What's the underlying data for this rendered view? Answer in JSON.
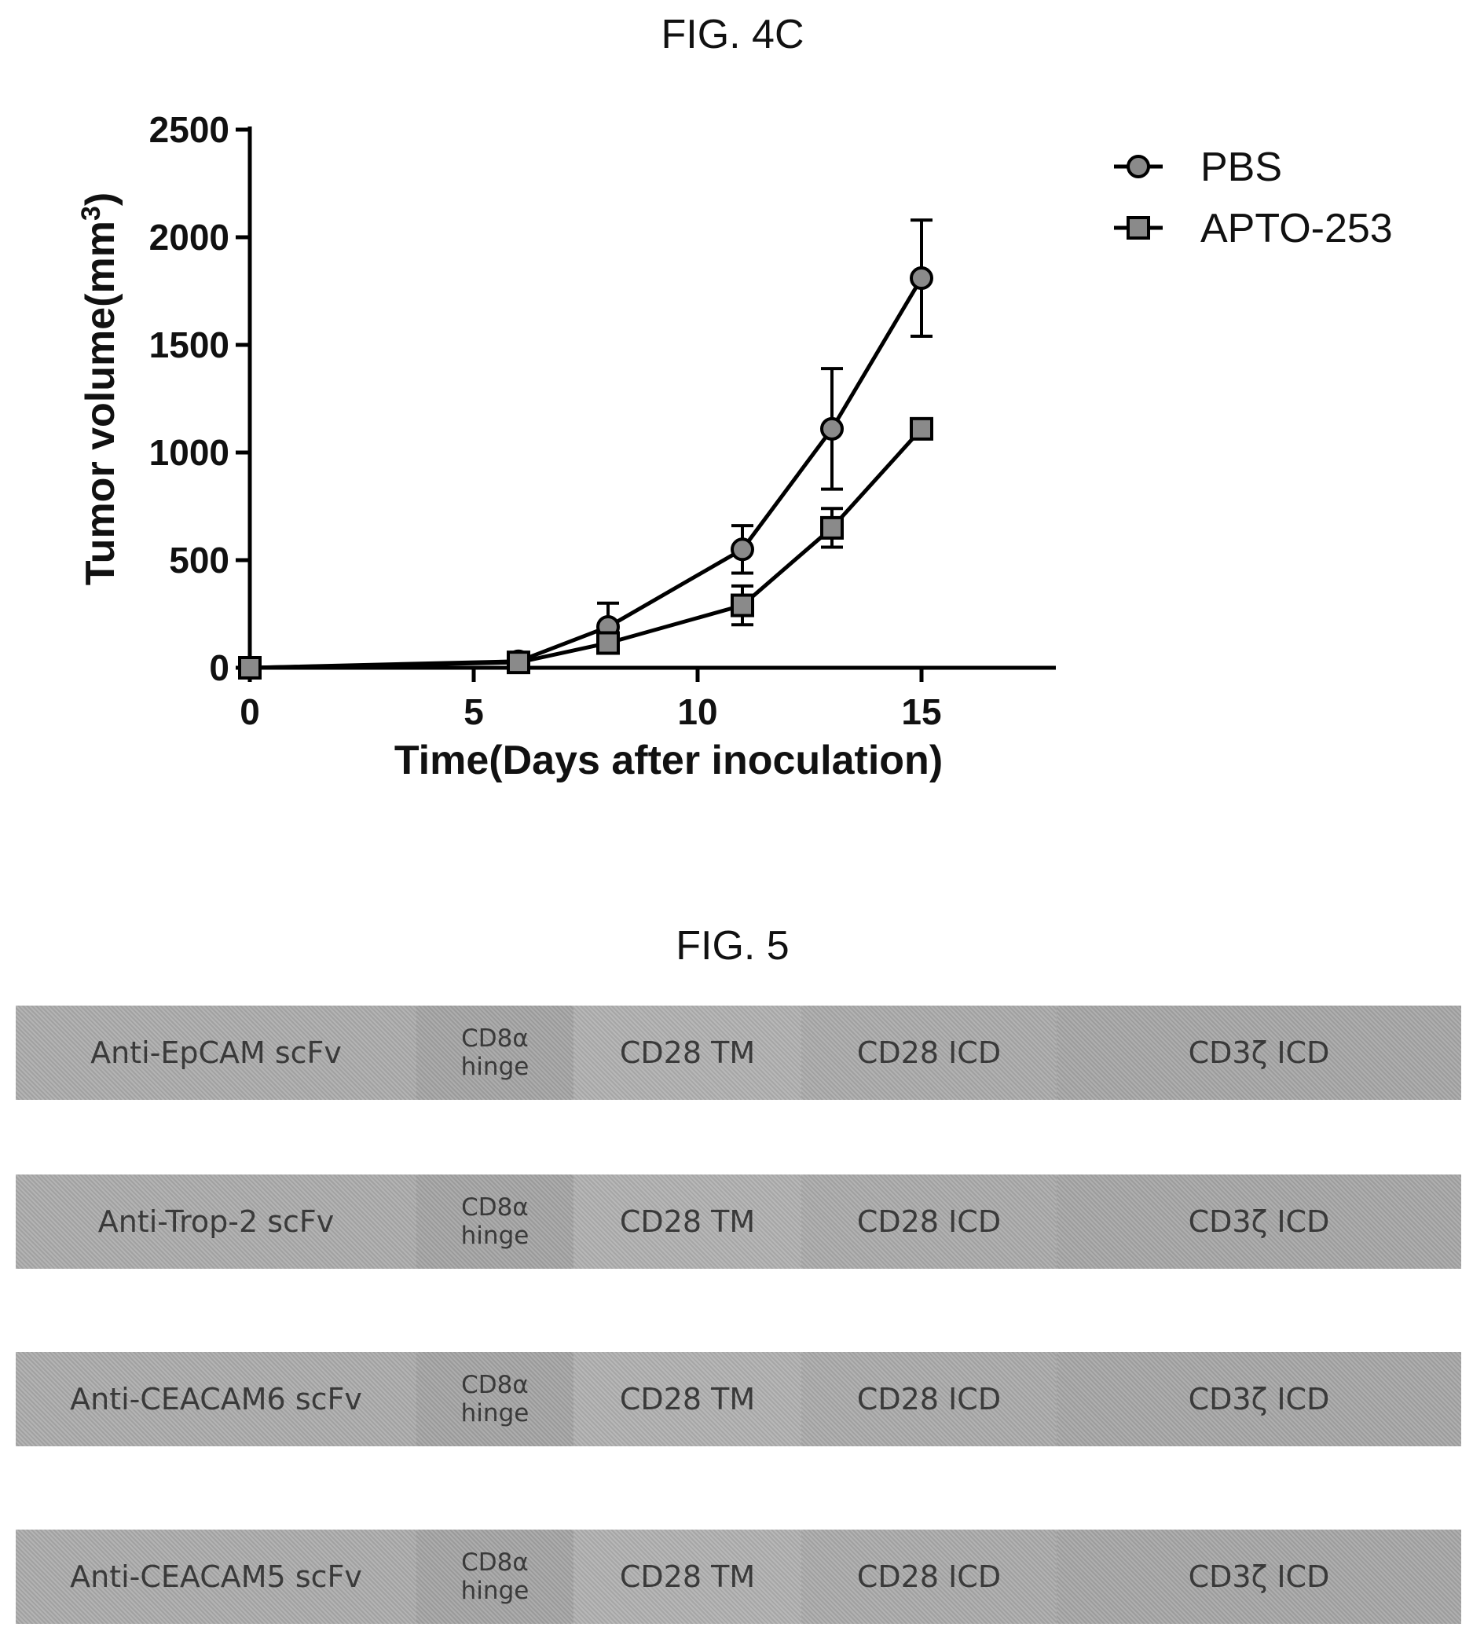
{
  "fig4c": {
    "title": "FIG. 4C",
    "chart_data": {
      "type": "line",
      "xlabel": "Time(Days after inoculation)",
      "ylabel": "Tumor volume(mm3)",
      "ylabel_base": "Tumor volume(mm",
      "ylabel_sup": "3",
      "ylabel_close": ")",
      "xlim": [
        0,
        18
      ],
      "ylim": [
        0,
        2500
      ],
      "xticks": [
        0,
        5,
        10,
        15
      ],
      "xtick_labels": [
        "0",
        "5",
        "10",
        "15"
      ],
      "yticks": [
        0,
        500,
        1000,
        1500,
        2000,
        2500
      ],
      "ytick_labels": [
        "0",
        "500",
        "1000",
        "1500",
        "2000",
        "2500"
      ],
      "grid": false,
      "legend_position": "top-right",
      "series": [
        {
          "name": "PBS",
          "marker": "circle",
          "x": [
            0,
            6,
            8,
            11,
            13,
            15
          ],
          "y": [
            0,
            30,
            190,
            550,
            1110,
            1810
          ],
          "err": [
            0,
            15,
            110,
            110,
            280,
            270
          ]
        },
        {
          "name": "APTO-253",
          "marker": "square",
          "x": [
            0,
            6,
            8,
            11,
            13,
            15
          ],
          "y": [
            0,
            25,
            115,
            290,
            650,
            1110
          ],
          "err": [
            0,
            10,
            40,
            90,
            90,
            20
          ]
        }
      ],
      "colors": {
        "line": "#000000",
        "marker_fill": "#8a8a8a"
      }
    }
  },
  "fig5": {
    "title": "FIG. 5",
    "rows": [
      {
        "scfv": "Anti-EpCAM scFv",
        "hinge_top": "CD8α",
        "hinge_bottom": "hinge",
        "tm": "CD28 TM",
        "icd28": "CD28 ICD",
        "icd3z": "CD3ζ ICD"
      },
      {
        "scfv": "Anti-Trop-2 scFv",
        "hinge_top": "CD8α",
        "hinge_bottom": "hinge",
        "tm": "CD28 TM",
        "icd28": "CD28 ICD",
        "icd3z": "CD3ζ ICD"
      },
      {
        "scfv": "Anti-CEACAM6 scFv",
        "hinge_top": "CD8α",
        "hinge_bottom": "hinge",
        "tm": "CD28 TM",
        "icd28": "CD28 ICD",
        "icd3z": "CD3ζ ICD"
      },
      {
        "scfv": "Anti-CEACAM5 scFv",
        "hinge_top": "CD8α",
        "hinge_bottom": "hinge",
        "tm": "CD28 TM",
        "icd28": "CD28 ICD",
        "icd3z": "CD3ζ ICD"
      }
    ]
  }
}
